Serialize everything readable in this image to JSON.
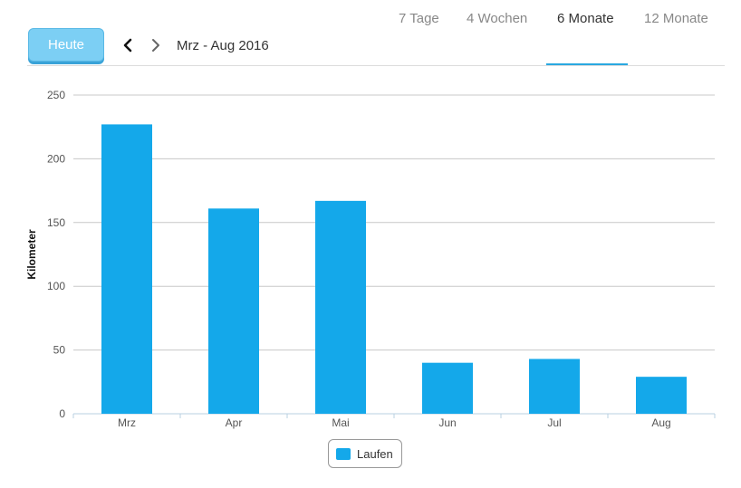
{
  "toolbar": {
    "today_label": "Heute",
    "period_label": "Mrz - Aug 2016",
    "prev_icon": "chevron-left-icon",
    "next_icon": "chevron-right-icon",
    "tabs": [
      {
        "label": "7 Tage",
        "active": false
      },
      {
        "label": "4 Wochen",
        "active": false
      },
      {
        "label": "6 Monate",
        "active": true
      },
      {
        "label": "12 Monate",
        "active": false
      }
    ]
  },
  "colors": {
    "bar": "#14a8ea",
    "accent": "#29a8e0",
    "today_button": "#7ccff4"
  },
  "chart_data": {
    "type": "bar",
    "categories": [
      "Mrz",
      "Apr",
      "Mai",
      "Jun",
      "Jul",
      "Aug"
    ],
    "series": [
      {
        "name": "Laufen",
        "values": [
          227,
          161,
          167,
          40,
          43,
          29
        ]
      }
    ],
    "ylabel": "Kilometer",
    "ylim": [
      0,
      250
    ],
    "yticks": [
      0,
      50,
      100,
      150,
      200,
      250
    ],
    "grid": true,
    "legend": "bottom-center"
  }
}
